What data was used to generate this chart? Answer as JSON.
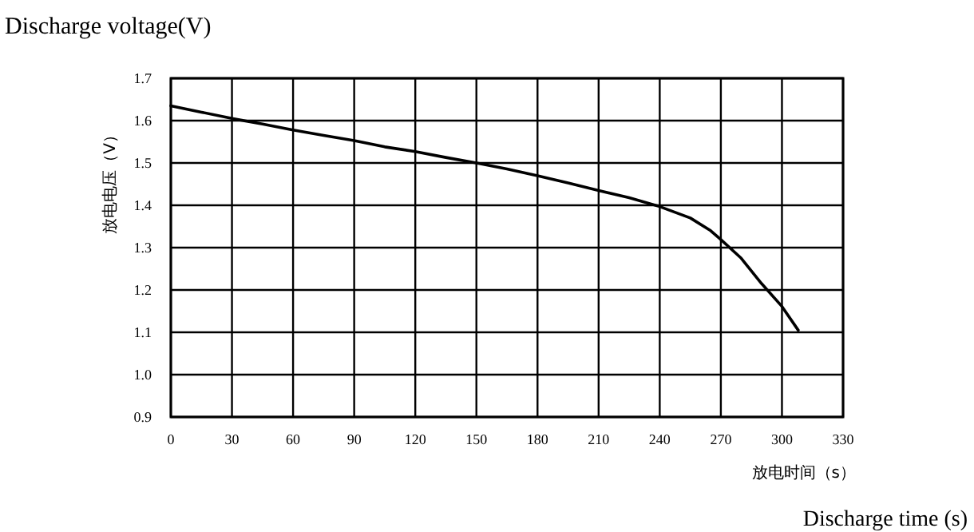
{
  "chart_data": {
    "type": "line",
    "title": "Discharge voltage(V)",
    "xlabel": "放电时间（s）",
    "ylabel": "放电电压（V）",
    "annotations": [
      "Discharge time (s)"
    ],
    "x": [
      0,
      15,
      30,
      45,
      60,
      75,
      90,
      105,
      120,
      135,
      150,
      165,
      180,
      195,
      210,
      225,
      240,
      255,
      265,
      270,
      280,
      290,
      300,
      308
    ],
    "series": [
      {
        "color": "#000000",
        "values": [
          1.635,
          1.62,
          1.605,
          1.592,
          1.578,
          1.565,
          1.553,
          1.538,
          1.527,
          1.513,
          1.5,
          1.486,
          1.47,
          1.453,
          1.435,
          1.418,
          1.397,
          1.37,
          1.34,
          1.319,
          1.275,
          1.215,
          1.161,
          1.105
        ]
      }
    ],
    "xlim": [
      0,
      330
    ],
    "xticks": [
      0,
      30,
      60,
      90,
      120,
      150,
      180,
      210,
      240,
      270,
      300,
      330
    ],
    "ylim": [
      0.9,
      1.7
    ],
    "yticks": [
      0.9,
      {
        "value": 1,
        "label": "1.0"
      },
      1.1,
      1.2,
      1.3,
      1.4,
      1.5,
      1.6,
      1.7
    ],
    "grid": true,
    "marker": "none",
    "line_style": "solid"
  }
}
